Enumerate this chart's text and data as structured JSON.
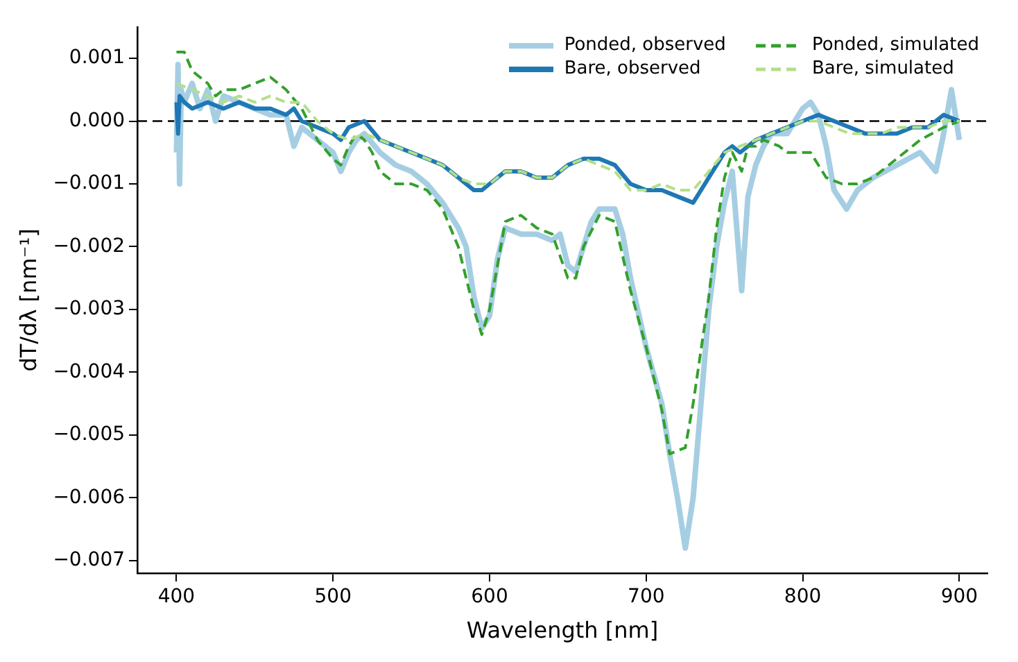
{
  "chart_data": {
    "type": "line",
    "xlabel": "Wavelength [nm]",
    "ylabel": "dT/dλ [nm⁻¹]",
    "xlim": [
      375,
      918
    ],
    "xticks": [
      400,
      500,
      600,
      700,
      800,
      900
    ],
    "ylim": [
      -0.0072,
      0.0015
    ],
    "yticks": [
      {
        "value": 0.001,
        "label": "0.001"
      },
      {
        "value": 0,
        "label": "0.000"
      },
      {
        "value": -0.001,
        "label": "−0.001"
      },
      {
        "value": -0.002,
        "label": "−0.002"
      },
      {
        "value": -0.003,
        "label": "−0.003"
      },
      {
        "value": -0.004,
        "label": "−0.004"
      },
      {
        "value": -0.005,
        "label": "−0.005"
      },
      {
        "value": -0.006,
        "label": "−0.006"
      },
      {
        "value": -0.007,
        "label": "−0.007"
      }
    ],
    "grid": false,
    "legend": "top right",
    "ref_lines": [
      {
        "axis": "y",
        "value": 0,
        "color": "#000000",
        "line_style": "dashed"
      }
    ],
    "series": [
      {
        "name": "Ponded, observed",
        "color": "#a6cee3",
        "line_style": "solid",
        "x": [
          400,
          401,
          402,
          403,
          405,
          410,
          415,
          420,
          425,
          430,
          440,
          450,
          460,
          470,
          475,
          480,
          490,
          500,
          505,
          510,
          515,
          520,
          530,
          540,
          550,
          560,
          570,
          580,
          585,
          590,
          595,
          600,
          605,
          610,
          620,
          630,
          640,
          645,
          650,
          655,
          660,
          665,
          670,
          680,
          685,
          690,
          700,
          710,
          715,
          720,
          725,
          730,
          735,
          740,
          745,
          750,
          755,
          761,
          765,
          770,
          775,
          780,
          790,
          800,
          805,
          810,
          815,
          820,
          828,
          835,
          845,
          860,
          875,
          885,
          890,
          895,
          900
        ],
        "values": [
          -0.0005,
          0.0009,
          -0.001,
          0.0005,
          0.0003,
          0.0006,
          0.0002,
          0.0005,
          0.0,
          0.0004,
          0.0003,
          0.0002,
          0.0001,
          0.0001,
          -0.0004,
          -0.0001,
          -0.0003,
          -0.0005,
          -0.0008,
          -0.0005,
          -0.0003,
          -0.0002,
          -0.0005,
          -0.0007,
          -0.0008,
          -0.001,
          -0.0013,
          -0.0017,
          -0.002,
          -0.0028,
          -0.0033,
          -0.0031,
          -0.0022,
          -0.0017,
          -0.0018,
          -0.0018,
          -0.0019,
          -0.0018,
          -0.0023,
          -0.0024,
          -0.002,
          -0.0016,
          -0.0014,
          -0.0014,
          -0.0018,
          -0.0025,
          -0.0036,
          -0.0045,
          -0.0053,
          -0.006,
          -0.0068,
          -0.006,
          -0.0045,
          -0.003,
          -0.002,
          -0.0013,
          -0.0008,
          -0.0027,
          -0.0012,
          -0.0007,
          -0.0004,
          -0.0002,
          -0.0002,
          0.0002,
          0.0003,
          0.0001,
          -0.0004,
          -0.0011,
          -0.0014,
          -0.0011,
          -0.0009,
          -0.0007,
          -0.0005,
          -0.0008,
          -0.0002,
          0.0005,
          -0.0003
        ]
      },
      {
        "name": "Bare, observed",
        "color": "#1f78b4",
        "line_style": "solid",
        "x": [
          400,
          401,
          402,
          405,
          410,
          420,
          430,
          440,
          450,
          460,
          470,
          475,
          480,
          490,
          500,
          505,
          510,
          520,
          530,
          540,
          550,
          560,
          570,
          580,
          590,
          595,
          600,
          610,
          620,
          630,
          640,
          650,
          660,
          670,
          680,
          690,
          700,
          710,
          720,
          730,
          740,
          750,
          755,
          760,
          765,
          770,
          780,
          790,
          800,
          810,
          820,
          830,
          840,
          850,
          860,
          870,
          880,
          890,
          900
        ],
        "values": [
          0.0003,
          -0.0002,
          0.0004,
          0.0003,
          0.0002,
          0.0003,
          0.0002,
          0.0003,
          0.0002,
          0.0002,
          0.0001,
          0.0002,
          0.0,
          -0.0001,
          -0.0002,
          -0.0003,
          -0.0001,
          0.0,
          -0.0003,
          -0.0004,
          -0.0005,
          -0.0006,
          -0.0007,
          -0.0009,
          -0.0011,
          -0.0011,
          -0.001,
          -0.0008,
          -0.0008,
          -0.0009,
          -0.0009,
          -0.0007,
          -0.0006,
          -0.0006,
          -0.0007,
          -0.001,
          -0.0011,
          -0.0011,
          -0.0012,
          -0.0013,
          -0.0009,
          -0.0005,
          -0.0004,
          -0.0005,
          -0.0004,
          -0.0003,
          -0.0002,
          -0.0001,
          0.0,
          0.0001,
          0.0,
          -0.0001,
          -0.0002,
          -0.0002,
          -0.0002,
          -0.0001,
          -0.0001,
          0.0001,
          0.0
        ]
      },
      {
        "name": "Ponded, simulated",
        "color": "#33a02c",
        "line_style": "dashed",
        "x": [
          400,
          405,
          410,
          420,
          425,
          430,
          440,
          450,
          460,
          470,
          480,
          490,
          500,
          505,
          510,
          515,
          520,
          525,
          530,
          540,
          550,
          560,
          570,
          580,
          590,
          595,
          600,
          605,
          610,
          620,
          630,
          640,
          650,
          655,
          660,
          670,
          680,
          690,
          700,
          710,
          715,
          725,
          730,
          740,
          745,
          750,
          755,
          761,
          765,
          770,
          775,
          785,
          790,
          805,
          815,
          825,
          835,
          845,
          860,
          875,
          890,
          900
        ],
        "values": [
          0.0011,
          0.0011,
          0.0008,
          0.0006,
          0.0004,
          0.0005,
          0.0005,
          0.0006,
          0.0007,
          0.0005,
          0.0002,
          -0.0003,
          -0.0006,
          -0.0007,
          -0.0004,
          -0.0002,
          -0.0003,
          -0.0005,
          -0.0008,
          -0.001,
          -0.001,
          -0.0011,
          -0.0014,
          -0.002,
          -0.003,
          -0.0034,
          -0.003,
          -0.0023,
          -0.0016,
          -0.0015,
          -0.0017,
          -0.0018,
          -0.0025,
          -0.0025,
          -0.002,
          -0.0015,
          -0.0016,
          -0.0027,
          -0.0036,
          -0.0046,
          -0.0053,
          -0.0052,
          -0.0045,
          -0.0028,
          -0.0017,
          -0.0009,
          -0.0005,
          -0.0008,
          -0.0004,
          -0.0004,
          -0.0003,
          -0.0004,
          -0.0005,
          -0.0005,
          -0.0009,
          -0.001,
          -0.001,
          -0.0009,
          -0.0006,
          -0.0003,
          -0.0001,
          0.0
        ]
      },
      {
        "name": "Bare, simulated",
        "color": "#b2df8a",
        "line_style": "dashed",
        "x": [
          400,
          410,
          420,
          430,
          440,
          450,
          460,
          470,
          480,
          490,
          500,
          510,
          520,
          530,
          540,
          550,
          560,
          570,
          580,
          590,
          600,
          610,
          620,
          630,
          640,
          650,
          660,
          670,
          680,
          690,
          700,
          710,
          720,
          730,
          740,
          750,
          760,
          770,
          780,
          790,
          800,
          810,
          820,
          830,
          840,
          850,
          860,
          870,
          880,
          890,
          900
        ],
        "values": [
          0.0006,
          0.0005,
          0.0004,
          0.0003,
          0.0004,
          0.0003,
          0.0004,
          0.0003,
          0.0003,
          0.0,
          -0.0002,
          -0.0003,
          -0.0002,
          -0.0003,
          -0.0004,
          -0.0005,
          -0.0006,
          -0.0007,
          -0.0009,
          -0.001,
          -0.001,
          -0.0008,
          -0.0008,
          -0.0009,
          -0.0009,
          -0.0007,
          -0.0006,
          -0.0007,
          -0.0008,
          -0.0011,
          -0.0011,
          -0.001,
          -0.0011,
          -0.0011,
          -0.0008,
          -0.0005,
          -0.0004,
          -0.0003,
          -0.0002,
          -0.0001,
          0.0,
          0.0,
          -0.0001,
          -0.0002,
          -0.0002,
          -0.0002,
          -0.0001,
          -0.0001,
          -0.0001,
          0.0,
          0.0
        ]
      }
    ]
  }
}
